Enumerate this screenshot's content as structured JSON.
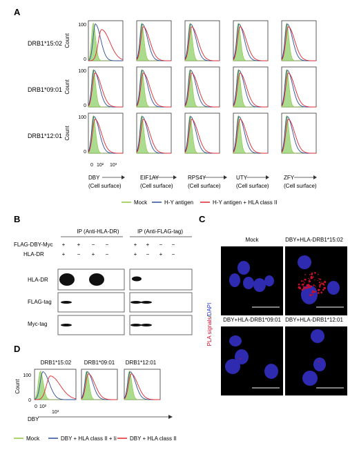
{
  "panelA": {
    "label": "A",
    "rows": [
      "DRB1*15:02",
      "DRB1*09:01",
      "DRB1*12:01"
    ],
    "cols": [
      "DBY",
      "EIF1AY",
      "RPS4Y",
      "UTY",
      "ZFY"
    ],
    "cell_surface": "(Cell surface)",
    "count_label": "Count",
    "ytick_100": "100",
    "ytick_0": "0",
    "xticks": [
      "0",
      "10²",
      "10³"
    ],
    "shifted": [
      [
        0
      ],
      [],
      []
    ],
    "legend": [
      {
        "name": "Mock",
        "color": "#8dc63f"
      },
      {
        "name": "H-Y antigen",
        "color": "#2b4c9b"
      },
      {
        "name": "H-Y antigen + HLA class II",
        "color": "#e0242c"
      }
    ]
  },
  "panelB": {
    "label": "B",
    "ip1": "IP (Anti-HLA-DR)",
    "ip2": "IP (Anti-FLAG-tag)",
    "row_labels": [
      "FLAG-DBY-Myc",
      "HLA-DR"
    ],
    "lane_signs": [
      [
        "+",
        "+",
        "−",
        "−"
      ],
      [
        "+",
        "−",
        "+",
        "−"
      ]
    ],
    "blots": [
      "HLA-DR",
      "FLAG-tag",
      "Myc-tag"
    ]
  },
  "panelC": {
    "label": "C",
    "titles": [
      "Mock",
      "DBY+HLA-DRB1*15:02",
      "DBY+HLA-DRB1*09:01",
      "DBY+HLA-DRB1*12:01"
    ],
    "side_label_pla": "PLA signals",
    "side_label_sep": "/",
    "side_label_dapi": "DAPI",
    "pla_color": "#c8102e",
    "dapi_color": "#2233cc"
  },
  "panelD": {
    "label": "D",
    "titles": [
      "DRB1*15:02",
      "DRB1*09:01",
      "DRB1*12:01"
    ],
    "count_label": "Count",
    "ytick_100": "100",
    "ytick_0": "0",
    "xticks": [
      "0",
      "10²",
      "10³"
    ],
    "xlabel": "DBY",
    "legend": [
      {
        "name": "Mock",
        "color": "#8dc63f"
      },
      {
        "name": "DBY + HLA class II + Ii",
        "color": "#2b4c9b"
      },
      {
        "name": "DBY + HLA class II",
        "color": "#e0242c"
      }
    ]
  }
}
